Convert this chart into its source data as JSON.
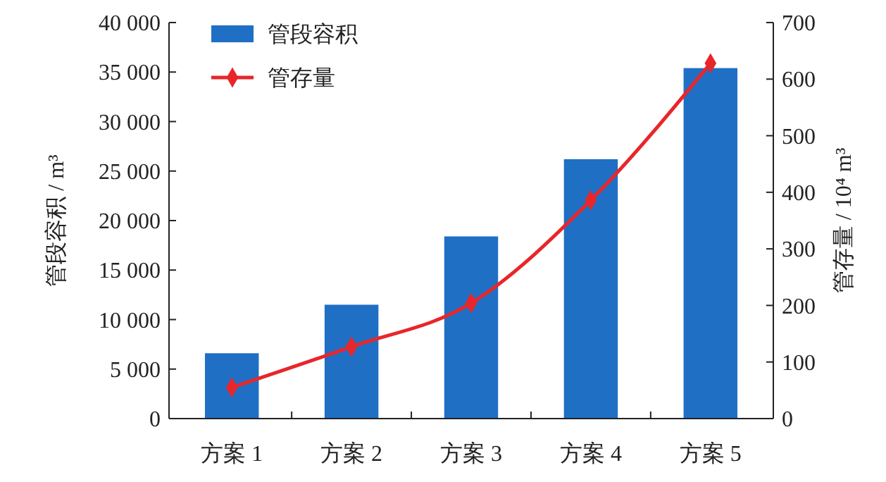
{
  "chart_data": {
    "type": "bar",
    "categories": [
      "方案 1",
      "方案 2",
      "方案 3",
      "方案 4",
      "方案 5"
    ],
    "series": [
      {
        "name": "管段容积",
        "color": "#1f6fc5",
        "values": [
          6600,
          11500,
          18400,
          26200,
          35400
        ]
      },
      {
        "name": "管存量",
        "type": "line",
        "axis": "y2",
        "color": "#e8262a",
        "marker": "diamond",
        "values": [
          55,
          127,
          204,
          386,
          628
        ]
      }
    ],
    "ylabel": "管段容积 / m³",
    "y2label": "管存量 / 10⁴ m³",
    "ylim": [
      0,
      40000
    ],
    "yticks": [
      0,
      {
        "value": 5000,
        "label": "5 000"
      },
      {
        "value": 10000,
        "label": "10 000"
      },
      {
        "value": 15000,
        "label": "15 000"
      },
      {
        "value": 20000,
        "label": "20 000"
      },
      {
        "value": 25000,
        "label": "25 000"
      },
      {
        "value": 30000,
        "label": "30 000"
      },
      {
        "value": 35000,
        "label": "35 000"
      },
      {
        "value": 40000,
        "label": "40 000"
      }
    ],
    "y2lim": [
      0,
      700
    ],
    "y2ticks": [
      0,
      100,
      200,
      300,
      400,
      500,
      600,
      700
    ],
    "legend": "top left",
    "grid": false
  }
}
